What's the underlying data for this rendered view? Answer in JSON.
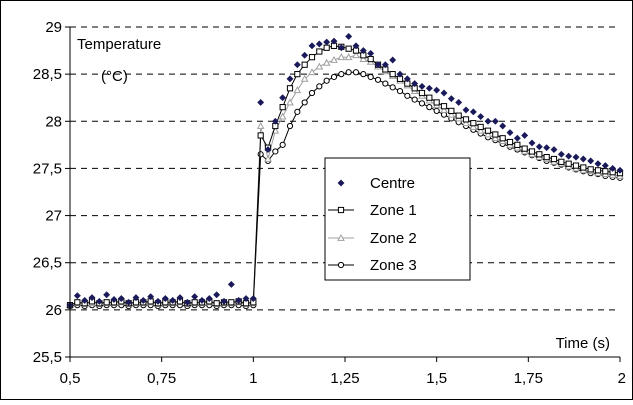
{
  "chart_data": {
    "type": "line",
    "title": "",
    "ylabel_lines": [
      "Temperature",
      "(°C)"
    ],
    "xlabel": "Time (s)",
    "xlim": [
      0.5,
      2
    ],
    "ylim": [
      25.5,
      29
    ],
    "x_ticks": [
      0.5,
      0.75,
      1,
      1.25,
      1.5,
      1.75,
      2
    ],
    "x_tick_labels": [
      "0,5",
      "0,75",
      "1",
      "1,25",
      "1,5",
      "1,75",
      "2"
    ],
    "y_ticks": [
      25.5,
      26,
      26.5,
      27,
      27.5,
      28,
      28.5,
      29
    ],
    "y_tick_labels": [
      "25,5",
      "26",
      "26,5",
      "27",
      "27,5",
      "28",
      "28,5",
      "29"
    ],
    "grid": "horizontal-dashed",
    "legend_position": "center-right",
    "series": [
      {
        "name": "Centre",
        "marker": "diamond",
        "line": false,
        "color": "#1a1a5a",
        "x": [
          0.5,
          0.52,
          0.54,
          0.56,
          0.58,
          0.6,
          0.62,
          0.64,
          0.66,
          0.68,
          0.7,
          0.72,
          0.74,
          0.76,
          0.78,
          0.8,
          0.82,
          0.84,
          0.86,
          0.88,
          0.9,
          0.92,
          0.94,
          0.96,
          0.98,
          1.0,
          1.02,
          1.04,
          1.06,
          1.08,
          1.1,
          1.12,
          1.14,
          1.16,
          1.18,
          1.2,
          1.22,
          1.24,
          1.26,
          1.28,
          1.3,
          1.32,
          1.34,
          1.36,
          1.38,
          1.4,
          1.42,
          1.44,
          1.46,
          1.48,
          1.5,
          1.52,
          1.54,
          1.56,
          1.58,
          1.6,
          1.62,
          1.64,
          1.66,
          1.68,
          1.7,
          1.72,
          1.74,
          1.76,
          1.78,
          1.8,
          1.82,
          1.84,
          1.86,
          1.88,
          1.9,
          1.92,
          1.94,
          1.96,
          1.98,
          2.0
        ],
        "y": [
          26.05,
          26.15,
          26.1,
          26.13,
          26.09,
          26.16,
          26.11,
          26.12,
          26.08,
          26.13,
          26.1,
          26.14,
          26.09,
          26.12,
          26.1,
          26.13,
          26.08,
          26.14,
          26.1,
          26.12,
          26.16,
          26.09,
          26.27,
          26.1,
          26.12,
          26.12,
          28.2,
          27.7,
          28.0,
          28.25,
          28.45,
          28.6,
          28.7,
          28.8,
          28.82,
          28.84,
          28.85,
          28.78,
          28.9,
          28.8,
          28.75,
          28.72,
          28.6,
          28.6,
          28.65,
          28.5,
          28.45,
          28.4,
          28.37,
          28.35,
          28.33,
          28.3,
          28.24,
          28.2,
          28.12,
          28.1,
          28.05,
          28.0,
          28.0,
          27.95,
          27.88,
          27.82,
          27.85,
          27.77,
          27.73,
          27.72,
          27.7,
          27.65,
          27.63,
          27.62,
          27.6,
          27.58,
          27.55,
          27.53,
          27.5,
          27.48
        ]
      },
      {
        "name": "Zone 1",
        "marker": "square",
        "line": true,
        "color": "#000000",
        "x": [
          0.5,
          0.52,
          0.54,
          0.56,
          0.58,
          0.6,
          0.62,
          0.64,
          0.66,
          0.68,
          0.7,
          0.72,
          0.74,
          0.76,
          0.78,
          0.8,
          0.82,
          0.84,
          0.86,
          0.88,
          0.9,
          0.92,
          0.94,
          0.96,
          0.98,
          1.0,
          1.02,
          1.04,
          1.06,
          1.08,
          1.1,
          1.12,
          1.14,
          1.16,
          1.18,
          1.2,
          1.22,
          1.24,
          1.26,
          1.28,
          1.3,
          1.32,
          1.34,
          1.36,
          1.38,
          1.4,
          1.42,
          1.44,
          1.46,
          1.48,
          1.5,
          1.52,
          1.54,
          1.56,
          1.58,
          1.6,
          1.62,
          1.64,
          1.66,
          1.68,
          1.7,
          1.72,
          1.74,
          1.76,
          1.78,
          1.8,
          1.82,
          1.84,
          1.86,
          1.88,
          1.9,
          1.92,
          1.94,
          1.96,
          1.98,
          2.0
        ],
        "y": [
          26.05,
          26.08,
          26.07,
          26.09,
          26.07,
          26.08,
          26.08,
          26.09,
          26.07,
          26.08,
          26.08,
          26.09,
          26.07,
          26.08,
          26.08,
          26.09,
          26.07,
          26.08,
          26.08,
          26.09,
          26.07,
          26.08,
          26.08,
          26.09,
          26.07,
          26.08,
          27.85,
          27.72,
          27.95,
          28.15,
          28.35,
          28.5,
          28.6,
          28.68,
          28.74,
          28.78,
          28.8,
          28.79,
          28.77,
          28.75,
          28.7,
          28.66,
          28.6,
          28.55,
          28.5,
          28.45,
          28.4,
          28.35,
          28.3,
          28.25,
          28.2,
          28.16,
          28.11,
          28.06,
          28.02,
          27.98,
          27.94,
          27.9,
          27.86,
          27.82,
          27.78,
          27.75,
          27.71,
          27.68,
          27.65,
          27.62,
          27.6,
          27.57,
          27.55,
          27.53,
          27.51,
          27.49,
          27.48,
          27.47,
          27.46,
          27.45
        ]
      },
      {
        "name": "Zone 2",
        "marker": "triangle",
        "line": true,
        "color": "#a0a0a0",
        "x": [
          0.5,
          0.52,
          0.54,
          0.56,
          0.58,
          0.6,
          0.62,
          0.64,
          0.66,
          0.68,
          0.7,
          0.72,
          0.74,
          0.76,
          0.78,
          0.8,
          0.82,
          0.84,
          0.86,
          0.88,
          0.9,
          0.92,
          0.94,
          0.96,
          0.98,
          1.0,
          1.02,
          1.04,
          1.06,
          1.08,
          1.1,
          1.12,
          1.14,
          1.16,
          1.18,
          1.2,
          1.22,
          1.24,
          1.26,
          1.28,
          1.3,
          1.32,
          1.34,
          1.36,
          1.38,
          1.4,
          1.42,
          1.44,
          1.46,
          1.48,
          1.5,
          1.52,
          1.54,
          1.56,
          1.58,
          1.6,
          1.62,
          1.64,
          1.66,
          1.68,
          1.7,
          1.72,
          1.74,
          1.76,
          1.78,
          1.8,
          1.82,
          1.84,
          1.86,
          1.88,
          1.9,
          1.92,
          1.94,
          1.96,
          1.98,
          2.0
        ],
        "y": [
          26.05,
          26.07,
          26.06,
          26.07,
          26.06,
          26.07,
          26.07,
          26.08,
          26.06,
          26.07,
          26.07,
          26.08,
          26.06,
          26.07,
          26.07,
          26.08,
          26.06,
          26.07,
          26.07,
          26.08,
          26.06,
          26.07,
          26.07,
          26.08,
          26.06,
          26.07,
          27.95,
          27.6,
          27.9,
          28.05,
          28.2,
          28.33,
          28.45,
          28.52,
          28.58,
          28.62,
          28.65,
          28.68,
          28.68,
          28.7,
          28.66,
          28.63,
          28.58,
          28.53,
          28.48,
          28.43,
          28.38,
          28.32,
          28.27,
          28.22,
          28.17,
          28.12,
          28.07,
          28.03,
          27.98,
          27.94,
          27.9,
          27.86,
          27.82,
          27.79,
          27.75,
          27.72,
          27.68,
          27.65,
          27.62,
          27.6,
          27.57,
          27.55,
          27.52,
          27.5,
          27.48,
          27.47,
          27.45,
          27.44,
          27.43,
          27.42
        ]
      },
      {
        "name": "Zone 3",
        "marker": "circle",
        "line": true,
        "color": "#000000",
        "x": [
          0.5,
          0.52,
          0.54,
          0.56,
          0.58,
          0.6,
          0.62,
          0.64,
          0.66,
          0.68,
          0.7,
          0.72,
          0.74,
          0.76,
          0.78,
          0.8,
          0.82,
          0.84,
          0.86,
          0.88,
          0.9,
          0.92,
          0.94,
          0.96,
          0.98,
          1.0,
          1.02,
          1.04,
          1.06,
          1.08,
          1.1,
          1.12,
          1.14,
          1.16,
          1.18,
          1.2,
          1.22,
          1.24,
          1.26,
          1.28,
          1.3,
          1.32,
          1.34,
          1.36,
          1.38,
          1.4,
          1.42,
          1.44,
          1.46,
          1.48,
          1.5,
          1.52,
          1.54,
          1.56,
          1.58,
          1.6,
          1.62,
          1.64,
          1.66,
          1.68,
          1.7,
          1.72,
          1.74,
          1.76,
          1.78,
          1.8,
          1.82,
          1.84,
          1.86,
          1.88,
          1.9,
          1.92,
          1.94,
          1.96,
          1.98,
          2.0
        ],
        "y": [
          26.04,
          26.05,
          26.04,
          26.05,
          26.04,
          26.05,
          26.05,
          26.05,
          26.04,
          26.05,
          26.05,
          26.05,
          26.04,
          26.05,
          26.05,
          26.05,
          26.04,
          26.05,
          26.05,
          26.05,
          26.04,
          26.05,
          26.05,
          26.05,
          26.04,
          26.05,
          27.65,
          27.58,
          27.68,
          27.75,
          27.95,
          28.1,
          28.2,
          28.3,
          28.37,
          28.43,
          28.47,
          28.5,
          28.52,
          28.52,
          28.5,
          28.47,
          28.44,
          28.4,
          28.36,
          28.32,
          28.27,
          28.23,
          28.19,
          28.15,
          28.11,
          28.07,
          28.03,
          27.99,
          27.95,
          27.91,
          27.87,
          27.83,
          27.8,
          27.76,
          27.73,
          27.7,
          27.67,
          27.64,
          27.61,
          27.58,
          27.56,
          27.54,
          27.51,
          27.49,
          27.47,
          27.45,
          27.44,
          27.42,
          27.41,
          27.4
        ]
      }
    ]
  }
}
